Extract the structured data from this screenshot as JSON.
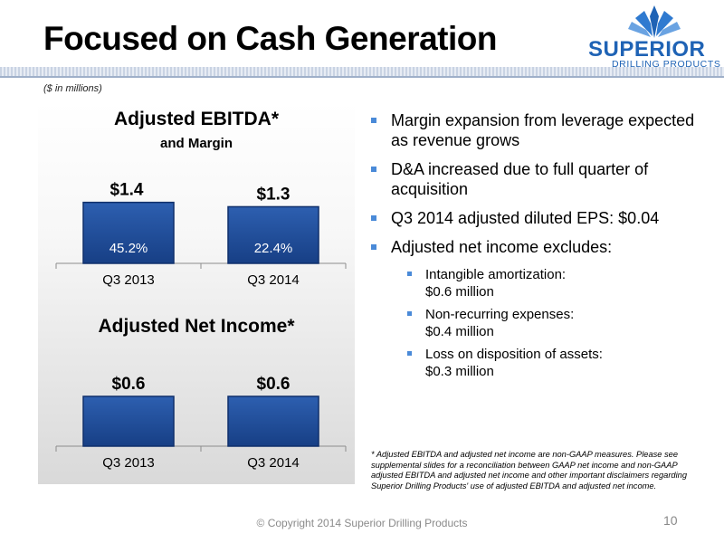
{
  "slide": {
    "title": "Focused on Cash Generation",
    "units_note": "($ in millions)",
    "copyright": "© Copyright 2014 Superior Drilling Products",
    "page_number": "10"
  },
  "logo": {
    "name": "SUPERIOR",
    "subtitle": "DRILLING PRODUCTS"
  },
  "bullets": [
    {
      "text": "Margin expansion from leverage expected as revenue grows"
    },
    {
      "text": "D&A increased due to full quarter of acquisition"
    },
    {
      "text": "Q3 2014 adjusted diluted EPS: $0.04"
    },
    {
      "text": "Adjusted net income excludes:"
    }
  ],
  "sub_bullets": [
    {
      "line1": "Intangible amortization:",
      "line2": "$0.6 million"
    },
    {
      "line1": "Non-recurring expenses:",
      "line2": "$0.4 million"
    },
    {
      "line1": "Loss on disposition of assets:",
      "line2": "$0.3 million"
    }
  ],
  "footnote": "* Adjusted EBITDA and adjusted net income are non-GAAP measures.  Please see supplemental slides for a reconciliation between GAAP net income and non-GAAP adjusted EBITDA  and adjusted net income and other important disclaimers regarding Superior Drilling Products' use of adjusted EBITDA and adjusted net income.",
  "colors": {
    "bar_fill": "#1f4f9e",
    "bar_border": "#0f2f6b",
    "bullet": "#4a8ad8",
    "logo_blue": "#1f63b5"
  },
  "chart_data": [
    {
      "type": "bar",
      "title": "Adjusted EBITDA*",
      "subtitle": "and Margin",
      "categories": [
        "Q3 2013",
        "Q3 2014"
      ],
      "values": [
        1.4,
        1.3
      ],
      "value_labels": [
        "$1.4",
        "$1.3"
      ],
      "margin_labels": [
        "45.2%",
        "22.4%"
      ],
      "ylim": [
        0,
        1.6
      ],
      "grid": false
    },
    {
      "type": "bar",
      "title": "Adjusted Net Income*",
      "categories": [
        "Q3 2013",
        "Q3 2014"
      ],
      "values": [
        0.6,
        0.6
      ],
      "value_labels": [
        "$0.6",
        "$0.6"
      ],
      "ylim": [
        0,
        0.6
      ],
      "grid": false
    }
  ]
}
